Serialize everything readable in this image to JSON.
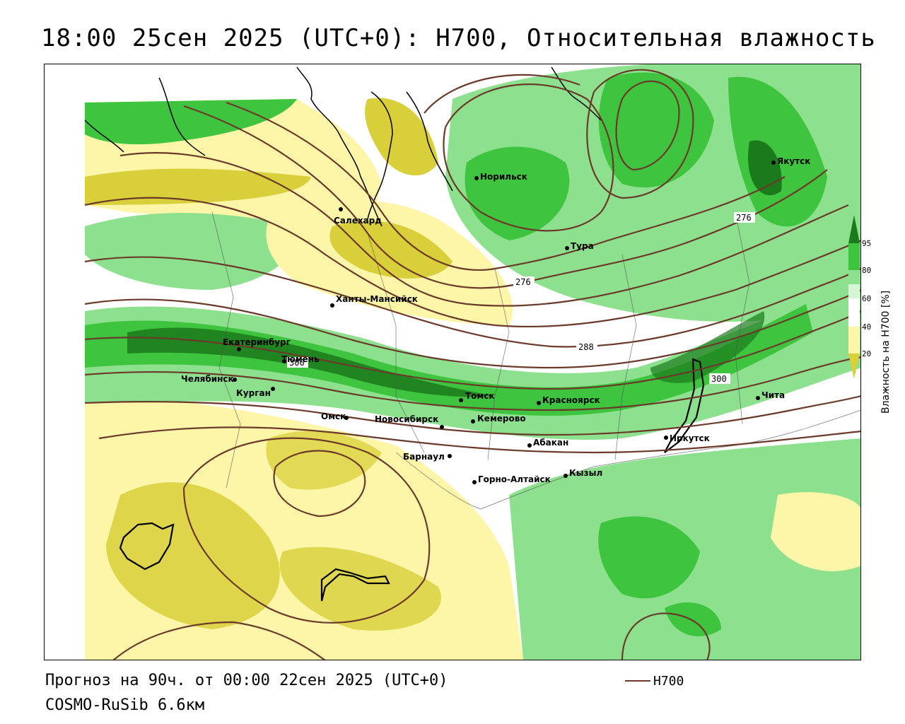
{
  "title": "18:00 25сен 2025 (UTC+0): H700, Относительная влажность",
  "footer": {
    "forecast": "Прогноз на 90ч. от 00:00 22сен 2025 (UTC+0)",
    "model": "COSMO-RuSib 6.6км"
  },
  "legend": {
    "line_label": "H700",
    "line_color": "#6b3a2a"
  },
  "colorbar": {
    "title": "Влажность на H700 [%]",
    "ticks": [
      "95",
      "80",
      "60",
      "40",
      "20"
    ],
    "colors": {
      "c95": "#1b7a1b",
      "c80": "#3ec43e",
      "c70": "#8de08d",
      "c60": "#d5f5d5",
      "c40": "#ffffff",
      "c30": "#fdf6a8",
      "c20": "#d8cf3a"
    }
  },
  "contour_labels": [
    "276",
    "276",
    "288",
    "300",
    "300"
  ],
  "cities": [
    "Якутск",
    "Норильск",
    "Салехард",
    "Тура",
    "Ханты-Мансийск",
    "Екатеринбург",
    "Тюмень",
    "Челябинск",
    "Курган",
    "Омск",
    "Новосибирск",
    "Томск",
    "Кемерово",
    "Красноярск",
    "Чита",
    "Абакан",
    "Иркутск",
    "Барнаул",
    "Горно-Алтайск",
    "Кызыл"
  ]
}
